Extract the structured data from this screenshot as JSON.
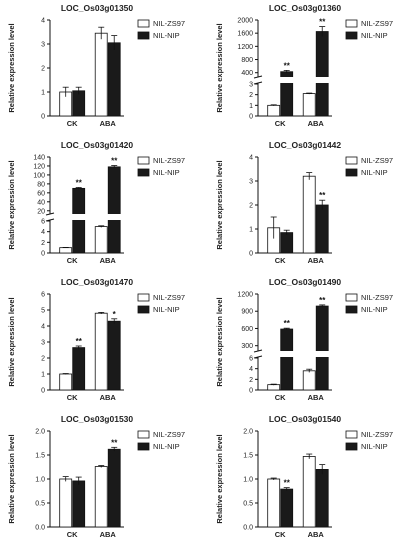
{
  "chart_data": [
    {
      "type": "bar",
      "title": "LOC_Os03g01350",
      "ylabel": "Relative expression level",
      "xlabel": "",
      "categories": [
        "CK",
        "ABA"
      ],
      "ylim": [
        0,
        4
      ],
      "yticks": [
        "0",
        "1",
        "2",
        "3",
        "4"
      ],
      "legend_position": "top-right",
      "series": [
        {
          "name": "NIL-ZS97",
          "values": [
            1.0,
            3.45
          ],
          "errors": [
            0.2,
            0.25
          ],
          "marks": [
            "",
            ""
          ]
        },
        {
          "name": "NIL-NIP",
          "values": [
            1.05,
            3.05
          ],
          "errors": [
            0.15,
            0.3
          ],
          "marks": [
            "",
            ""
          ]
        }
      ]
    },
    {
      "type": "bar",
      "title": "LOC_Os03g01360",
      "ylabel": "Relative expression level",
      "xlabel": "",
      "categories": [
        "CK",
        "ABA"
      ],
      "broken_axis": true,
      "lower_ylim": [
        0,
        3
      ],
      "upper_ylim": [
        0,
        2000
      ],
      "yticks_lower": [
        "0",
        "1",
        "2",
        "3"
      ],
      "yticks_upper": [
        "400",
        "800",
        "1200",
        "1600",
        "2000"
      ],
      "legend_position": "top-right",
      "series": [
        {
          "name": "NIL-ZS97",
          "values": [
            1.0,
            2.1
          ],
          "errors": [
            0.05,
            0.05
          ],
          "marks": [
            "",
            ""
          ]
        },
        {
          "name": "NIL-NIP",
          "values": [
            430,
            1650
          ],
          "errors": [
            40,
            150
          ],
          "marks": [
            "**",
            "**"
          ]
        }
      ]
    },
    {
      "type": "bar",
      "title": "LOC_Os03g01420",
      "ylabel": "Relative expression level",
      "xlabel": "",
      "categories": [
        "CK",
        "ABA"
      ],
      "broken_axis": true,
      "lower_ylim": [
        0,
        6
      ],
      "upper_ylim": [
        0,
        140
      ],
      "yticks_lower": [
        "0",
        "2",
        "4",
        "6"
      ],
      "yticks_upper": [
        "20",
        "40",
        "60",
        "80",
        "100",
        "120",
        "140"
      ],
      "legend_position": "top-right",
      "series": [
        {
          "name": "NIL-ZS97",
          "values": [
            1.0,
            4.95
          ],
          "errors": [
            0.05,
            0.15
          ],
          "marks": [
            "",
            ""
          ]
        },
        {
          "name": "NIL-NIP",
          "values": [
            70,
            118
          ],
          "errors": [
            2,
            3
          ],
          "marks": [
            "**",
            "**"
          ]
        }
      ]
    },
    {
      "type": "bar",
      "title": "LOC_Os03g01442",
      "ylabel": "Relative expression level",
      "xlabel": "",
      "categories": [
        "CK",
        "ABA"
      ],
      "ylim": [
        0,
        4
      ],
      "yticks": [
        "0",
        "1",
        "2",
        "3",
        "4"
      ],
      "legend_position": "top-right",
      "series": [
        {
          "name": "NIL-ZS97",
          "values": [
            1.05,
            3.2
          ],
          "errors": [
            0.45,
            0.15
          ],
          "marks": [
            "",
            ""
          ]
        },
        {
          "name": "NIL-NIP",
          "values": [
            0.85,
            2.0
          ],
          "errors": [
            0.1,
            0.2
          ],
          "marks": [
            "",
            "**"
          ]
        }
      ]
    },
    {
      "type": "bar",
      "title": "LOC_Os03g01470",
      "ylabel": "Relative expression level",
      "xlabel": "",
      "categories": [
        "CK",
        "ABA"
      ],
      "ylim": [
        0,
        6
      ],
      "yticks": [
        "0",
        "1",
        "2",
        "3",
        "4",
        "5",
        "6"
      ],
      "legend_position": "top-right",
      "series": [
        {
          "name": "NIL-ZS97",
          "values": [
            1.0,
            4.8
          ],
          "errors": [
            0.03,
            0.05
          ],
          "marks": [
            "",
            ""
          ]
        },
        {
          "name": "NIL-NIP",
          "values": [
            2.65,
            4.3
          ],
          "errors": [
            0.1,
            0.15
          ],
          "marks": [
            "**",
            "*"
          ]
        }
      ]
    },
    {
      "type": "bar",
      "title": "LOC_Os03g01490",
      "ylabel": "Relative expression level",
      "xlabel": "",
      "categories": [
        "CK",
        "ABA"
      ],
      "broken_axis": true,
      "lower_ylim": [
        0,
        6
      ],
      "upper_ylim": [
        0,
        1200
      ],
      "yticks_lower": [
        "0",
        "2",
        "4",
        "6"
      ],
      "yticks_upper": [
        "300",
        "600",
        "900",
        "1200"
      ],
      "legend_position": "top-right",
      "series": [
        {
          "name": "NIL-ZS97",
          "values": [
            1.0,
            3.6
          ],
          "errors": [
            0.1,
            0.3
          ],
          "marks": [
            "",
            ""
          ]
        },
        {
          "name": "NIL-NIP",
          "values": [
            590,
            990
          ],
          "errors": [
            15,
            20
          ],
          "marks": [
            "**",
            "**"
          ]
        }
      ]
    },
    {
      "type": "bar",
      "title": "LOC_Os03g01530",
      "ylabel": "Relative expression level",
      "xlabel": "",
      "categories": [
        "CK",
        "ABA"
      ],
      "ylim": [
        0,
        2.0
      ],
      "yticks": [
        "0.0",
        "0.5",
        "1.0",
        "1.5",
        "2.0"
      ],
      "legend_position": "top-right",
      "series": [
        {
          "name": "NIL-ZS97",
          "values": [
            1.0,
            1.26
          ],
          "errors": [
            0.05,
            0.02
          ],
          "marks": [
            "",
            ""
          ]
        },
        {
          "name": "NIL-NIP",
          "values": [
            0.96,
            1.62
          ],
          "errors": [
            0.08,
            0.04
          ],
          "marks": [
            "",
            "**"
          ]
        }
      ]
    },
    {
      "type": "bar",
      "title": "LOC_Os03g01540",
      "ylabel": "Relative expression level",
      "xlabel": "",
      "categories": [
        "CK",
        "ABA"
      ],
      "ylim": [
        0,
        2.0
      ],
      "yticks": [
        "0.0",
        "0.5",
        "1.0",
        "1.5",
        "2.0"
      ],
      "legend_position": "top-right",
      "series": [
        {
          "name": "NIL-ZS97",
          "values": [
            1.0,
            1.47
          ],
          "errors": [
            0.02,
            0.05
          ],
          "marks": [
            "",
            ""
          ]
        },
        {
          "name": "NIL-NIP",
          "values": [
            0.79,
            1.2
          ],
          "errors": [
            0.03,
            0.1
          ],
          "marks": [
            "**",
            ""
          ]
        }
      ]
    }
  ]
}
